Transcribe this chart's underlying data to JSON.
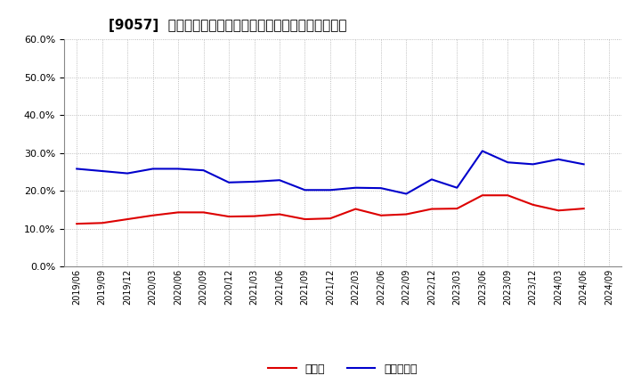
{
  "title": "[9057]  現須金、有利子負債の総資産に対する比率の推移",
  "x_labels": [
    "2019/06",
    "2019/09",
    "2019/12",
    "2020/03",
    "2020/06",
    "2020/09",
    "2020/12",
    "2021/03",
    "2021/06",
    "2021/09",
    "2021/12",
    "2022/03",
    "2022/06",
    "2022/09",
    "2022/12",
    "2023/03",
    "2023/06",
    "2023/09",
    "2023/12",
    "2024/03",
    "2024/06",
    "2024/09"
  ],
  "cash": [
    0.113,
    0.115,
    0.125,
    0.135,
    0.143,
    0.143,
    0.132,
    0.133,
    0.138,
    0.125,
    0.127,
    0.152,
    0.135,
    0.138,
    0.152,
    0.153,
    0.188,
    0.188,
    0.163,
    0.148,
    0.153,
    null
  ],
  "debt": [
    0.258,
    0.252,
    0.246,
    0.258,
    0.258,
    0.254,
    0.222,
    0.224,
    0.228,
    0.202,
    0.202,
    0.208,
    0.207,
    0.192,
    0.23,
    0.208,
    0.305,
    0.275,
    0.27,
    0.283,
    0.27,
    null
  ],
  "cash_color": "#dd0000",
  "debt_color": "#0000cc",
  "legend_cash": "現須金",
  "legend_debt": "有利子負債",
  "ylim": [
    0.0,
    0.6
  ],
  "yticks": [
    0.0,
    0.1,
    0.2,
    0.3,
    0.4,
    0.5,
    0.6
  ],
  "background_color": "#ffffff",
  "grid_color": "#aaaaaa",
  "title_fontsize": 11
}
